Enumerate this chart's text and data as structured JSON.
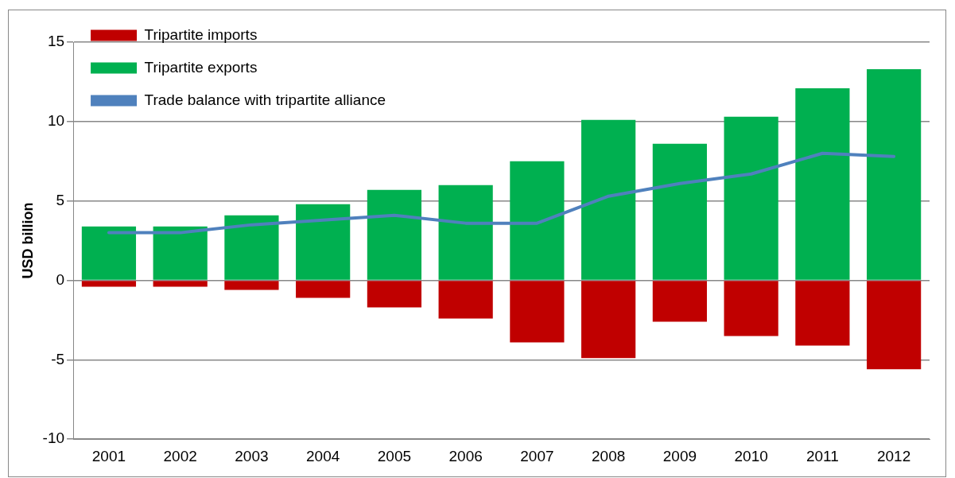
{
  "chart_data": {
    "type": "bar",
    "ylabel": "USD billion",
    "categories": [
      "2001",
      "2002",
      "2003",
      "2004",
      "2005",
      "2006",
      "2007",
      "2008",
      "2009",
      "2010",
      "2011",
      "2012"
    ],
    "series": [
      {
        "name": "Tripartite imports",
        "color": "#c00000",
        "values": [
          -0.4,
          -0.4,
          -0.6,
          -1.1,
          -1.7,
          -2.4,
          -3.9,
          -4.9,
          -2.6,
          -3.5,
          -4.1,
          -5.6
        ]
      },
      {
        "name": "Tripartite exports",
        "color": "#00b050",
        "values": [
          3.4,
          3.4,
          4.1,
          4.8,
          5.7,
          6.0,
          7.5,
          10.1,
          8.6,
          10.3,
          12.1,
          13.3
        ]
      },
      {
        "name": "Trade balance with tripartite alliance",
        "type": "line",
        "color": "#4f81bd",
        "values": [
          3.0,
          3.0,
          3.5,
          3.8,
          4.1,
          3.6,
          3.6,
          5.3,
          6.1,
          6.7,
          8.0,
          7.8
        ]
      }
    ],
    "stacked": true,
    "ylim": [
      -10,
      15
    ],
    "yticks": [
      -10,
      -5,
      0,
      5,
      10,
      15
    ],
    "grid": "y",
    "legend": "top left",
    "marker": "none"
  }
}
